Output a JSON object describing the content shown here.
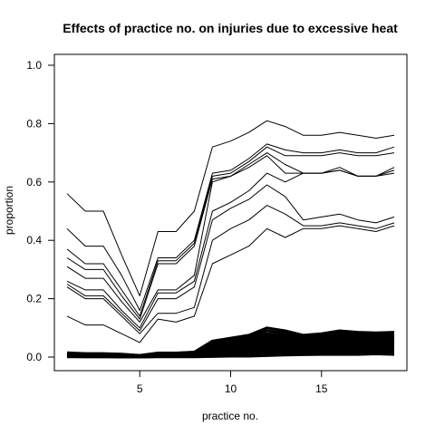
{
  "chart_data": {
    "type": "line",
    "title": "Effects of practice no. on injuries due to excessive heat",
    "xlabel": "practice no.",
    "ylabel": "proportion",
    "xlim": [
      1,
      19
    ],
    "ylim": [
      0,
      1
    ],
    "x_ticks": [
      5,
      10,
      15
    ],
    "y_ticks": [
      0.0,
      0.2,
      0.4,
      0.6,
      0.8,
      1.0
    ],
    "y_tick_labels": [
      "0.0",
      "0.2",
      "0.4",
      "0.6",
      "0.8",
      "1.0"
    ],
    "grid": false,
    "legend": "none",
    "line_color": "#000000",
    "x": [
      1,
      2,
      3,
      4,
      5,
      6,
      7,
      8,
      9,
      10,
      11,
      12,
      13,
      14,
      15,
      16,
      17,
      18,
      19
    ],
    "series": [
      {
        "values": [
          0.56,
          0.5,
          0.5,
          0.35,
          0.21,
          0.43,
          0.43,
          0.5,
          0.72,
          0.74,
          0.77,
          0.81,
          0.79,
          0.76,
          0.76,
          0.77,
          0.76,
          0.75,
          0.76
        ]
      },
      {
        "values": [
          0.44,
          0.38,
          0.38,
          0.28,
          0.16,
          0.34,
          0.34,
          0.4,
          0.63,
          0.64,
          0.68,
          0.73,
          0.71,
          0.7,
          0.7,
          0.71,
          0.7,
          0.7,
          0.72
        ]
      },
      {
        "values": [
          0.37,
          0.32,
          0.32,
          0.23,
          0.14,
          0.33,
          0.33,
          0.39,
          0.62,
          0.63,
          0.67,
          0.72,
          0.69,
          0.69,
          0.69,
          0.7,
          0.69,
          0.69,
          0.7
        ]
      },
      {
        "values": [
          0.34,
          0.3,
          0.3,
          0.21,
          0.13,
          0.32,
          0.32,
          0.38,
          0.61,
          0.62,
          0.66,
          0.7,
          0.66,
          0.63,
          0.63,
          0.65,
          0.62,
          0.62,
          0.65
        ]
      },
      {
        "values": [
          0.31,
          0.27,
          0.27,
          0.19,
          0.12,
          0.23,
          0.23,
          0.28,
          0.6,
          0.62,
          0.65,
          0.69,
          0.63,
          0.63,
          0.63,
          0.64,
          0.62,
          0.62,
          0.63
        ]
      },
      {
        "values": [
          0.26,
          0.23,
          0.23,
          0.16,
          0.1,
          0.22,
          0.22,
          0.26,
          0.5,
          0.53,
          0.57,
          0.63,
          0.6,
          0.63,
          0.63,
          0.64,
          0.62,
          0.62,
          0.64
        ]
      },
      {
        "values": [
          0.25,
          0.21,
          0.21,
          0.15,
          0.09,
          0.2,
          0.2,
          0.24,
          0.47,
          0.51,
          0.54,
          0.59,
          0.55,
          0.47,
          0.48,
          0.49,
          0.47,
          0.46,
          0.48
        ]
      },
      {
        "values": [
          0.24,
          0.2,
          0.2,
          0.14,
          0.08,
          0.15,
          0.15,
          0.17,
          0.4,
          0.44,
          0.47,
          0.52,
          0.49,
          0.45,
          0.45,
          0.46,
          0.45,
          0.44,
          0.46
        ]
      },
      {
        "values": [
          0.14,
          0.11,
          0.11,
          0.08,
          0.05,
          0.13,
          0.12,
          0.14,
          0.32,
          0.35,
          0.38,
          0.44,
          0.41,
          0.44,
          0.44,
          0.45,
          0.44,
          0.43,
          0.45
        ]
      },
      {
        "values": [
          0.015,
          0.012,
          0.012,
          0.01,
          0.006,
          0.014,
          0.014,
          0.017,
          0.055,
          0.065,
          0.075,
          0.1,
          0.09,
          0.075,
          0.08,
          0.09,
          0.085,
          0.083,
          0.085
        ]
      },
      {
        "values": [
          0.013,
          0.011,
          0.011,
          0.009,
          0.005,
          0.013,
          0.013,
          0.016,
          0.05,
          0.06,
          0.07,
          0.09,
          0.082,
          0.07,
          0.074,
          0.082,
          0.078,
          0.076,
          0.079
        ]
      },
      {
        "values": [
          0.012,
          0.01,
          0.01,
          0.008,
          0.005,
          0.012,
          0.012,
          0.015,
          0.045,
          0.055,
          0.065,
          0.08,
          0.075,
          0.065,
          0.068,
          0.075,
          0.072,
          0.07,
          0.073
        ]
      },
      {
        "values": [
          0.011,
          0.009,
          0.009,
          0.007,
          0.004,
          0.011,
          0.011,
          0.014,
          0.04,
          0.05,
          0.058,
          0.072,
          0.068,
          0.06,
          0.063,
          0.07,
          0.067,
          0.065,
          0.068
        ]
      },
      {
        "values": [
          0.01,
          0.008,
          0.008,
          0.006,
          0.004,
          0.01,
          0.01,
          0.013,
          0.035,
          0.045,
          0.052,
          0.065,
          0.062,
          0.055,
          0.058,
          0.064,
          0.062,
          0.06,
          0.063
        ]
      },
      {
        "values": [
          0.009,
          0.007,
          0.007,
          0.006,
          0.003,
          0.009,
          0.009,
          0.012,
          0.03,
          0.04,
          0.046,
          0.058,
          0.056,
          0.05,
          0.053,
          0.059,
          0.057,
          0.055,
          0.058
        ]
      },
      {
        "values": [
          0.008,
          0.006,
          0.006,
          0.005,
          0.003,
          0.008,
          0.008,
          0.01,
          0.026,
          0.035,
          0.04,
          0.051,
          0.05,
          0.045,
          0.048,
          0.053,
          0.052,
          0.05,
          0.053
        ]
      },
      {
        "values": [
          0.007,
          0.005,
          0.005,
          0.004,
          0.002,
          0.007,
          0.007,
          0.009,
          0.022,
          0.03,
          0.034,
          0.044,
          0.044,
          0.04,
          0.043,
          0.047,
          0.046,
          0.045,
          0.047
        ]
      },
      {
        "values": [
          0.006,
          0.004,
          0.004,
          0.003,
          0.002,
          0.006,
          0.006,
          0.008,
          0.018,
          0.025,
          0.028,
          0.037,
          0.038,
          0.035,
          0.038,
          0.041,
          0.04,
          0.04,
          0.041
        ]
      },
      {
        "values": [
          0.005,
          0.003,
          0.003,
          0.003,
          0.001,
          0.005,
          0.005,
          0.006,
          0.014,
          0.02,
          0.022,
          0.03,
          0.032,
          0.03,
          0.033,
          0.035,
          0.035,
          0.035,
          0.035
        ]
      },
      {
        "values": [
          0.004,
          0.002,
          0.002,
          0.002,
          0.001,
          0.004,
          0.004,
          0.005,
          0.01,
          0.015,
          0.016,
          0.023,
          0.026,
          0.025,
          0.027,
          0.029,
          0.029,
          0.03,
          0.029
        ]
      },
      {
        "values": [
          0.003,
          0.002,
          0.002,
          0.001,
          0.001,
          0.003,
          0.003,
          0.004,
          0.007,
          0.01,
          0.011,
          0.016,
          0.02,
          0.02,
          0.021,
          0.023,
          0.023,
          0.025,
          0.023
        ]
      },
      {
        "values": [
          0.002,
          0.001,
          0.001,
          0.001,
          0.0,
          0.002,
          0.002,
          0.002,
          0.004,
          0.006,
          0.006,
          0.01,
          0.013,
          0.014,
          0.015,
          0.016,
          0.016,
          0.018,
          0.016
        ]
      },
      {
        "values": [
          0.001,
          0.001,
          0.001,
          0.0,
          0.0,
          0.001,
          0.001,
          0.001,
          0.002,
          0.003,
          0.003,
          0.005,
          0.007,
          0.008,
          0.009,
          0.009,
          0.009,
          0.011,
          0.009
        ]
      }
    ]
  }
}
